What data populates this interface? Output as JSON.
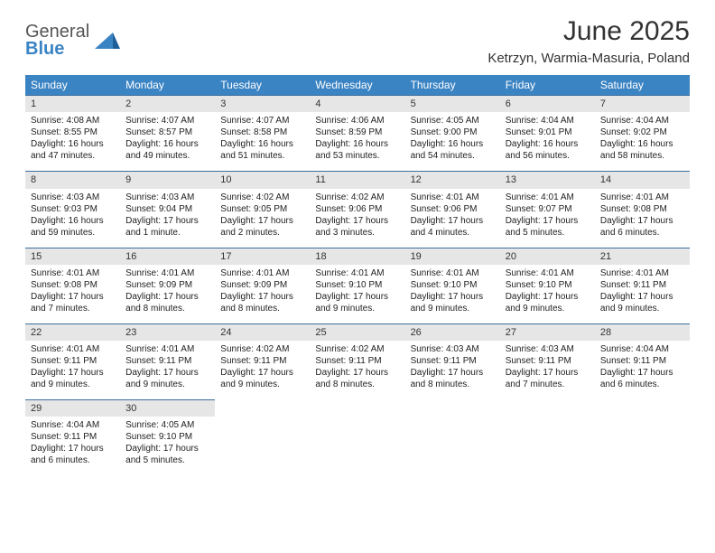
{
  "logo": {
    "word1": "General",
    "word2": "Blue"
  },
  "title": "June 2025",
  "location": "Ketrzyn, Warmia-Masuria, Poland",
  "colors": {
    "header_bg": "#3b84c4",
    "daynum_bg": "#e6e6e6",
    "daynum_border": "#3b6fa0",
    "text": "#222222",
    "page_bg": "#ffffff"
  },
  "weekdays": [
    "Sunday",
    "Monday",
    "Tuesday",
    "Wednesday",
    "Thursday",
    "Friday",
    "Saturday"
  ],
  "weeks": [
    [
      {
        "n": "1",
        "sr": "Sunrise: 4:08 AM",
        "ss": "Sunset: 8:55 PM",
        "d1": "Daylight: 16 hours",
        "d2": "and 47 minutes."
      },
      {
        "n": "2",
        "sr": "Sunrise: 4:07 AM",
        "ss": "Sunset: 8:57 PM",
        "d1": "Daylight: 16 hours",
        "d2": "and 49 minutes."
      },
      {
        "n": "3",
        "sr": "Sunrise: 4:07 AM",
        "ss": "Sunset: 8:58 PM",
        "d1": "Daylight: 16 hours",
        "d2": "and 51 minutes."
      },
      {
        "n": "4",
        "sr": "Sunrise: 4:06 AM",
        "ss": "Sunset: 8:59 PM",
        "d1": "Daylight: 16 hours",
        "d2": "and 53 minutes."
      },
      {
        "n": "5",
        "sr": "Sunrise: 4:05 AM",
        "ss": "Sunset: 9:00 PM",
        "d1": "Daylight: 16 hours",
        "d2": "and 54 minutes."
      },
      {
        "n": "6",
        "sr": "Sunrise: 4:04 AM",
        "ss": "Sunset: 9:01 PM",
        "d1": "Daylight: 16 hours",
        "d2": "and 56 minutes."
      },
      {
        "n": "7",
        "sr": "Sunrise: 4:04 AM",
        "ss": "Sunset: 9:02 PM",
        "d1": "Daylight: 16 hours",
        "d2": "and 58 minutes."
      }
    ],
    [
      {
        "n": "8",
        "sr": "Sunrise: 4:03 AM",
        "ss": "Sunset: 9:03 PM",
        "d1": "Daylight: 16 hours",
        "d2": "and 59 minutes."
      },
      {
        "n": "9",
        "sr": "Sunrise: 4:03 AM",
        "ss": "Sunset: 9:04 PM",
        "d1": "Daylight: 17 hours",
        "d2": "and 1 minute."
      },
      {
        "n": "10",
        "sr": "Sunrise: 4:02 AM",
        "ss": "Sunset: 9:05 PM",
        "d1": "Daylight: 17 hours",
        "d2": "and 2 minutes."
      },
      {
        "n": "11",
        "sr": "Sunrise: 4:02 AM",
        "ss": "Sunset: 9:06 PM",
        "d1": "Daylight: 17 hours",
        "d2": "and 3 minutes."
      },
      {
        "n": "12",
        "sr": "Sunrise: 4:01 AM",
        "ss": "Sunset: 9:06 PM",
        "d1": "Daylight: 17 hours",
        "d2": "and 4 minutes."
      },
      {
        "n": "13",
        "sr": "Sunrise: 4:01 AM",
        "ss": "Sunset: 9:07 PM",
        "d1": "Daylight: 17 hours",
        "d2": "and 5 minutes."
      },
      {
        "n": "14",
        "sr": "Sunrise: 4:01 AM",
        "ss": "Sunset: 9:08 PM",
        "d1": "Daylight: 17 hours",
        "d2": "and 6 minutes."
      }
    ],
    [
      {
        "n": "15",
        "sr": "Sunrise: 4:01 AM",
        "ss": "Sunset: 9:08 PM",
        "d1": "Daylight: 17 hours",
        "d2": "and 7 minutes."
      },
      {
        "n": "16",
        "sr": "Sunrise: 4:01 AM",
        "ss": "Sunset: 9:09 PM",
        "d1": "Daylight: 17 hours",
        "d2": "and 8 minutes."
      },
      {
        "n": "17",
        "sr": "Sunrise: 4:01 AM",
        "ss": "Sunset: 9:09 PM",
        "d1": "Daylight: 17 hours",
        "d2": "and 8 minutes."
      },
      {
        "n": "18",
        "sr": "Sunrise: 4:01 AM",
        "ss": "Sunset: 9:10 PM",
        "d1": "Daylight: 17 hours",
        "d2": "and 9 minutes."
      },
      {
        "n": "19",
        "sr": "Sunrise: 4:01 AM",
        "ss": "Sunset: 9:10 PM",
        "d1": "Daylight: 17 hours",
        "d2": "and 9 minutes."
      },
      {
        "n": "20",
        "sr": "Sunrise: 4:01 AM",
        "ss": "Sunset: 9:10 PM",
        "d1": "Daylight: 17 hours",
        "d2": "and 9 minutes."
      },
      {
        "n": "21",
        "sr": "Sunrise: 4:01 AM",
        "ss": "Sunset: 9:11 PM",
        "d1": "Daylight: 17 hours",
        "d2": "and 9 minutes."
      }
    ],
    [
      {
        "n": "22",
        "sr": "Sunrise: 4:01 AM",
        "ss": "Sunset: 9:11 PM",
        "d1": "Daylight: 17 hours",
        "d2": "and 9 minutes."
      },
      {
        "n": "23",
        "sr": "Sunrise: 4:01 AM",
        "ss": "Sunset: 9:11 PM",
        "d1": "Daylight: 17 hours",
        "d2": "and 9 minutes."
      },
      {
        "n": "24",
        "sr": "Sunrise: 4:02 AM",
        "ss": "Sunset: 9:11 PM",
        "d1": "Daylight: 17 hours",
        "d2": "and 9 minutes."
      },
      {
        "n": "25",
        "sr": "Sunrise: 4:02 AM",
        "ss": "Sunset: 9:11 PM",
        "d1": "Daylight: 17 hours",
        "d2": "and 8 minutes."
      },
      {
        "n": "26",
        "sr": "Sunrise: 4:03 AM",
        "ss": "Sunset: 9:11 PM",
        "d1": "Daylight: 17 hours",
        "d2": "and 8 minutes."
      },
      {
        "n": "27",
        "sr": "Sunrise: 4:03 AM",
        "ss": "Sunset: 9:11 PM",
        "d1": "Daylight: 17 hours",
        "d2": "and 7 minutes."
      },
      {
        "n": "28",
        "sr": "Sunrise: 4:04 AM",
        "ss": "Sunset: 9:11 PM",
        "d1": "Daylight: 17 hours",
        "d2": "and 6 minutes."
      }
    ],
    [
      {
        "n": "29",
        "sr": "Sunrise: 4:04 AM",
        "ss": "Sunset: 9:11 PM",
        "d1": "Daylight: 17 hours",
        "d2": "and 6 minutes."
      },
      {
        "n": "30",
        "sr": "Sunrise: 4:05 AM",
        "ss": "Sunset: 9:10 PM",
        "d1": "Daylight: 17 hours",
        "d2": "and 5 minutes."
      },
      null,
      null,
      null,
      null,
      null
    ]
  ]
}
